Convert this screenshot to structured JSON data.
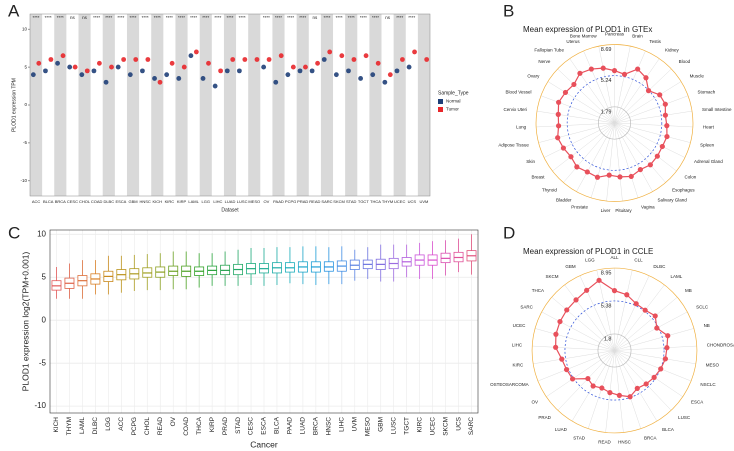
{
  "chart_data": [
    {
      "panel": "A",
      "type": "dot",
      "ylabel": "PLOD1 expression TPM",
      "xlabel": "Dataset",
      "categories": [
        "ACC",
        "BLCA",
        "BRCA",
        "CESC",
        "CHOL",
        "COAD",
        "DLBC",
        "ESCA",
        "GBM",
        "HNSC",
        "KICH",
        "KIRC",
        "KIRP",
        "LAML",
        "LGG",
        "LIHC",
        "LUAD",
        "LUSC",
        "MESO",
        "OV",
        "PAAD",
        "PCPG",
        "PRAD",
        "READ",
        "SARC",
        "SKCM",
        "STAD",
        "TGCT",
        "THCA",
        "THYM",
        "UCEC",
        "UCS",
        "UVM"
      ],
      "series": [
        {
          "name": "Normal",
          "color": "#1f3f78",
          "values": [
            4,
            4.5,
            5.5,
            5,
            4,
            4.5,
            3,
            5,
            4,
            4.5,
            3.5,
            4,
            3.5,
            6.5,
            3.5,
            2.5,
            4.5,
            4.5,
            null,
            5,
            3,
            4,
            4.5,
            4.5,
            6,
            4,
            4.5,
            3.5,
            4,
            3,
            4.5,
            5,
            null
          ]
        },
        {
          "name": "Tumor",
          "color": "#e8262a",
          "values": [
            5.5,
            6,
            6.5,
            5,
            4.5,
            5.5,
            5,
            6,
            6,
            6,
            3,
            5.5,
            5,
            7,
            5.5,
            4.5,
            6,
            6,
            6,
            6,
            6.5,
            5,
            5,
            5.5,
            7,
            6.5,
            6,
            6.5,
            5.5,
            4,
            6,
            7,
            6
          ]
        }
      ],
      "significance": [
        "****",
        "****",
        "****",
        "ns",
        "ns",
        "****",
        "****",
        "****",
        "****",
        "****",
        "****",
        "****",
        "****",
        "****",
        "****",
        "****",
        "****",
        "****",
        null,
        "****",
        "****",
        "****",
        "****",
        "ns",
        "****",
        "****",
        "****",
        "****",
        "****",
        "ns",
        "****",
        "****",
        null
      ],
      "legend_title": "Sample_Type",
      "legend": "right",
      "ylim": [
        -12,
        12
      ],
      "yticks": [
        -10,
        -5,
        0,
        5,
        10
      ]
    },
    {
      "panel": "B",
      "type": "radar",
      "title": "Mean expression of PLOD1 in GTEx",
      "categories": [
        "Pancreas",
        "Brain",
        "Testis",
        "Kidney",
        "Blood",
        "Muscle",
        "Stomach",
        "Small Intestine",
        "Heart",
        "Spleen",
        "Adrenal Gland",
        "Colon",
        "Esophagus",
        "Salivary Gland",
        "Vagina",
        "Pituitary",
        "Liver",
        "Prostate",
        "Bladder",
        "Thyroid",
        "Breast",
        "Skin",
        "Adipose Tissue",
        "Lung",
        "Cervix Uteri",
        "Blood Vessel",
        "Ovary",
        "Nerve",
        "Fallopian Tube",
        "Uterus",
        "Bone Marrow"
      ],
      "values": [
        5.8,
        5.5,
        6.5,
        6.1,
        5.2,
        5.9,
        6,
        5.7,
        5.8,
        6,
        5.9,
        6,
        6.1,
        5.9,
        6.2,
        6,
        5.8,
        6.3,
        6.2,
        6.4,
        6.1,
        6.3,
        6.5,
        6.2,
        6.3,
        6.6,
        6.4,
        6.2,
        6.7,
        6.5,
        6.2
      ],
      "color": "#e8505b",
      "rlim": [
        0,
        8.69
      ],
      "rticks": [
        1.79,
        5.24,
        8.69
      ]
    },
    {
      "panel": "C",
      "type": "box",
      "ylabel": "PLOD1 expression log2(TPM+0.001)",
      "xlabel": "Cancer",
      "categories": [
        "KICH",
        "THYM",
        "LAML",
        "DLBC",
        "LGG",
        "ACC",
        "PCPG",
        "CHOL",
        "READ",
        "OV",
        "COAD",
        "THCA",
        "KIRP",
        "PRAD",
        "STAD",
        "CESC",
        "ESCA",
        "BLCA",
        "PAAD",
        "LUAD",
        "BRCA",
        "HNSC",
        "LIHC",
        "UVM",
        "MESO",
        "GBM",
        "LUSC",
        "TGCT",
        "KIRC",
        "UCEC",
        "SKCM",
        "UCS",
        "SARC"
      ],
      "colors": [
        "hsl(0,70%,62%)",
        "hsl(10,70%,58%)",
        "hsl(20,70%,55%)",
        "hsl(30,70%,50%)",
        "hsl(38,75%,45%)",
        "hsl(45,75%,42%)",
        "hsl(52,70%,40%)",
        "hsl(60,65%,38%)",
        "hsl(70,65%,38%)",
        "hsl(85,65%,38%)",
        "hsl(100,65%,38%)",
        "hsl(115,60%,40%)",
        "hsl(130,60%,40%)",
        "hsl(140,60%,40%)",
        "hsl(150,65%,40%)",
        "hsl(160,70%,40%)",
        "hsl(170,70%,40%)",
        "hsl(178,70%,40%)",
        "hsl(185,75%,42%)",
        "hsl(192,75%,45%)",
        "hsl(198,75%,48%)",
        "hsl(205,75%,52%)",
        "hsl(212,75%,58%)",
        "hsl(222,70%,62%)",
        "hsl(235,65%,65%)",
        "hsl(250,65%,65%)",
        "hsl(265,65%,65%)",
        "hsl(280,65%,62%)",
        "hsl(292,65%,60%)",
        "hsl(305,65%,58%)",
        "hsl(318,65%,58%)",
        "hsl(330,70%,60%)",
        "hsl(342,70%,60%)"
      ],
      "min": [
        2.5,
        2.5,
        2.5,
        3,
        3,
        3.2,
        3.4,
        3.5,
        3.5,
        3.6,
        3.6,
        3.8,
        4,
        4,
        4,
        4.1,
        4,
        4.1,
        4.3,
        4.2,
        4.1,
        4.2,
        4.2,
        4.6,
        4.8,
        4.5,
        4.5,
        5,
        4.8,
        4.8,
        5.2,
        5.6,
        5.3
      ],
      "q1": [
        3.5,
        3.7,
        4,
        4.2,
        4.5,
        4.7,
        4.8,
        5,
        5,
        5.2,
        5.1,
        5.2,
        5.3,
        5.3,
        5.3,
        5.4,
        5.5,
        5.5,
        5.6,
        5.6,
        5.6,
        5.7,
        5.7,
        5.9,
        6,
        5.9,
        6,
        6.3,
        6.4,
        6.4,
        6.7,
        6.8,
        6.9
      ],
      "median": [
        4,
        4.3,
        4.6,
        4.8,
        5.1,
        5.3,
        5.4,
        5.5,
        5.6,
        5.7,
        5.7,
        5.7,
        5.8,
        5.8,
        5.9,
        6,
        6,
        6.1,
        6.1,
        6.2,
        6.2,
        6.2,
        6.3,
        6.4,
        6.5,
        6.5,
        6.6,
        6.8,
        7,
        7,
        7.2,
        7.3,
        7.5
      ],
      "q3": [
        4.6,
        4.9,
        5.2,
        5.4,
        5.7,
        5.9,
        6,
        6.1,
        6.2,
        6.3,
        6.3,
        6.2,
        6.3,
        6.4,
        6.5,
        6.6,
        6.6,
        6.7,
        6.7,
        6.8,
        6.8,
        6.8,
        6.9,
        7,
        7,
        7.1,
        7.2,
        7.3,
        7.6,
        7.6,
        7.8,
        7.9,
        8.1
      ],
      "max": [
        6.2,
        6.6,
        7,
        7,
        7.5,
        7.5,
        7.6,
        7.7,
        7.8,
        8,
        8,
        7.8,
        7.8,
        8,
        8.2,
        8.4,
        8.4,
        8.5,
        8.5,
        8.6,
        8.6,
        8.5,
        8.6,
        8.2,
        8.5,
        8.8,
        8.8,
        8.8,
        9,
        9.2,
        9.3,
        9.5,
        10
      ],
      "ylim": [
        -10.8,
        10.5
      ],
      "yticks": [
        -10,
        -5,
        0,
        5,
        10
      ],
      "grid": true
    },
    {
      "panel": "D",
      "type": "radar",
      "title": "Mean expression of PLOD1 in CCLE",
      "categories": [
        "ALL",
        "CLL",
        "DLBC",
        "LAML",
        "MB",
        "SCLC",
        "NB",
        "CHONDROSARCOMA",
        "MESO",
        "NSCLC",
        "ESCA",
        "LUSC",
        "BLCA",
        "BRCA",
        "HNSC",
        "READ",
        "STAD",
        "LUAD",
        "PRAD",
        "OV",
        "OSTEOSARCOMA",
        "KIRC",
        "LIHC",
        "UCEC",
        "SARC",
        "THCA",
        "SKCM",
        "GBM",
        "LGG"
      ],
      "values": [
        6.5,
        6.2,
        5.6,
        5.5,
        5.8,
        5.2,
        6,
        5.7,
        5.6,
        5.4,
        5.2,
        5,
        4.8,
        5.3,
        4.9,
        4.6,
        4.3,
        4.5,
        4.2,
        5.5,
        5.6,
        5.8,
        6.4,
        6.6,
        6.7,
        6.8,
        6.9,
        7.2,
        7.8
      ],
      "color": "#e8505b",
      "rlim": [
        0,
        8.95
      ],
      "rticks": [
        1.8,
        5.38,
        8.95
      ]
    }
  ]
}
